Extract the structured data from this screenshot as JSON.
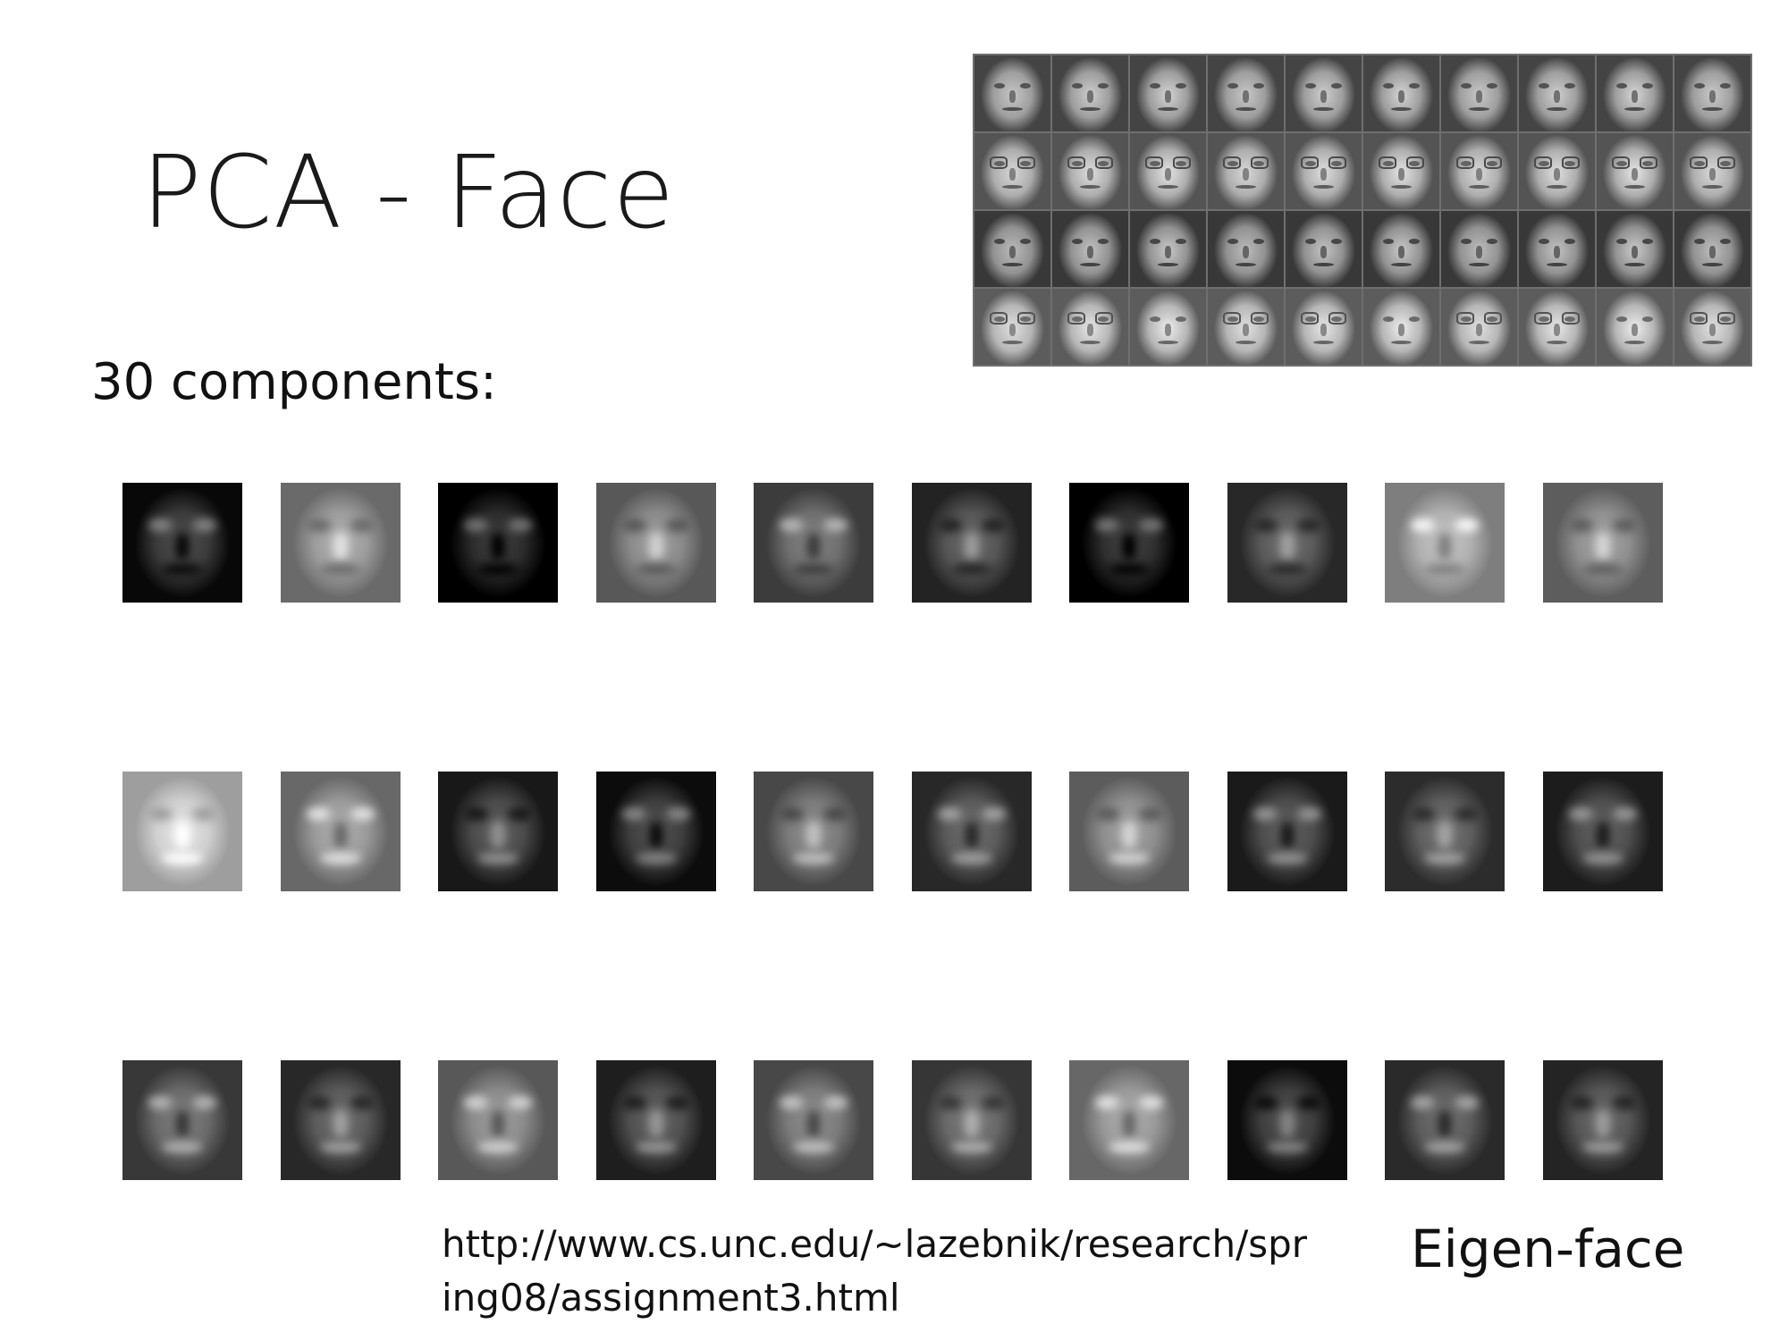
{
  "slide": {
    "title": "PCA - Face",
    "subtitle": "30 components:",
    "url_line1": "http://www.cs.unc.edu/~lazebnik/research/spr",
    "url_line2": "ing08/assignment3.html",
    "label": "Eigen-face"
  },
  "sample_faces": {
    "rows": 4,
    "cols": 10,
    "row_tones": [
      "#8a8a8a",
      "#9a9a9a",
      "#7e7e7e",
      "#a2a2a2"
    ],
    "glasses_rows": [
      1,
      3
    ]
  },
  "eigenfaces": {
    "rows": 3,
    "cols": 10,
    "tones": [
      [
        "#3a3a3a",
        "#9c9c9c",
        "#2b2b2b",
        "#8a8a8a",
        "#6e6e6e",
        "#555555",
        "#2e2e2e",
        "#5a5a5a",
        "#b0b0b0",
        "#8f8f8f"
      ],
      [
        "#d0d0d0",
        "#9a9a9a",
        "#4a4a4a",
        "#3e3e3e",
        "#7a7a7a",
        "#5a5a5a",
        "#8e8e8e",
        "#4c4c4c",
        "#5e5e5e",
        "#4e4e4e"
      ],
      [
        "#6a6a6a",
        "#5a5a5a",
        "#8a8a8a",
        "#505050",
        "#7a7a7a",
        "#686868",
        "#999999",
        "#3e3e3e",
        "#5c5c5c",
        "#565656"
      ]
    ]
  }
}
